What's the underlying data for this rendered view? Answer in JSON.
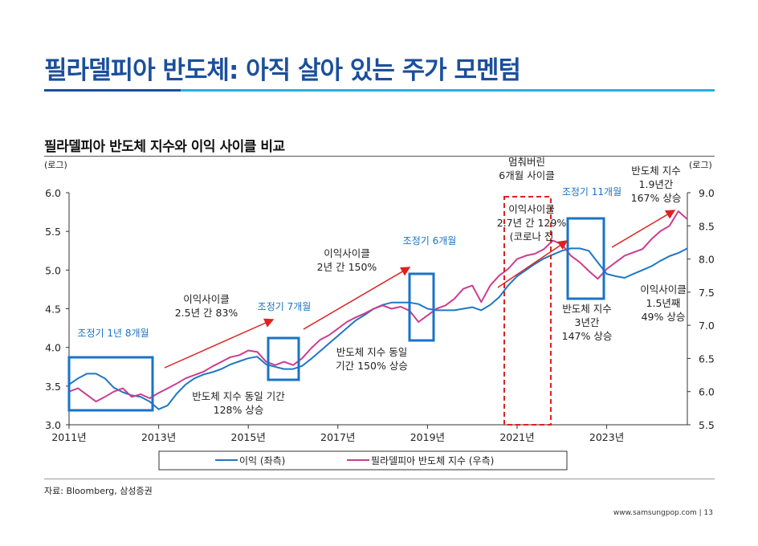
{
  "slide": {
    "title": "필라델피아 반도체: 아직 살아 있는 주가 모멘텀",
    "subtitle": "필라델피아 반도체 지수와 이익 사이클 비교",
    "source": "자료: Bloomberg, 삼성증권",
    "footer": "www.samsungpop.com | 13"
  },
  "chart_data": {
    "type": "line",
    "title": "필라델피아 반도체 지수와 이익 사이클 비교",
    "left_axis_label": "(로그)",
    "right_axis_label": "(로그)",
    "left_ylim": [
      3.0,
      6.0
    ],
    "right_ylim": [
      5.5,
      9.0
    ],
    "left_ticks": [
      "3.0",
      "3.5",
      "4.0",
      "4.5",
      "5.0",
      "5.5",
      "6.0"
    ],
    "right_ticks": [
      "5.5",
      "6.0",
      "6.5",
      "7.0",
      "7.5",
      "8.0",
      "8.5",
      "9.0"
    ],
    "xlim": [
      2011.0,
      2024.8
    ],
    "x_ticks": [
      "2011년",
      "2013년",
      "2015년",
      "2017년",
      "2019년",
      "2021년",
      "2023년"
    ],
    "legend": [
      "이익 (좌측)",
      "필라델피아 반도체 지수 (우측)"
    ],
    "series": [
      {
        "name": "이익 (좌측)",
        "axis": "left",
        "color": "#1f77c4",
        "points": [
          [
            2011.0,
            3.52
          ],
          [
            2011.2,
            3.6
          ],
          [
            2011.4,
            3.66
          ],
          [
            2011.6,
            3.66
          ],
          [
            2011.8,
            3.6
          ],
          [
            2012.0,
            3.48
          ],
          [
            2012.2,
            3.42
          ],
          [
            2012.4,
            3.38
          ],
          [
            2012.6,
            3.36
          ],
          [
            2012.8,
            3.3
          ],
          [
            2013.0,
            3.2
          ],
          [
            2013.2,
            3.25
          ],
          [
            2013.4,
            3.4
          ],
          [
            2013.6,
            3.52
          ],
          [
            2013.8,
            3.6
          ],
          [
            2014.0,
            3.65
          ],
          [
            2014.2,
            3.68
          ],
          [
            2014.4,
            3.72
          ],
          [
            2014.6,
            3.78
          ],
          [
            2014.8,
            3.82
          ],
          [
            2015.0,
            3.86
          ],
          [
            2015.2,
            3.88
          ],
          [
            2015.4,
            3.78
          ],
          [
            2015.6,
            3.75
          ],
          [
            2015.8,
            3.72
          ],
          [
            2016.0,
            3.72
          ],
          [
            2016.2,
            3.76
          ],
          [
            2016.4,
            3.85
          ],
          [
            2016.6,
            3.95
          ],
          [
            2016.8,
            4.05
          ],
          [
            2017.0,
            4.15
          ],
          [
            2017.2,
            4.25
          ],
          [
            2017.4,
            4.35
          ],
          [
            2017.6,
            4.42
          ],
          [
            2017.8,
            4.5
          ],
          [
            2018.0,
            4.55
          ],
          [
            2018.2,
            4.58
          ],
          [
            2018.4,
            4.58
          ],
          [
            2018.6,
            4.58
          ],
          [
            2018.8,
            4.56
          ],
          [
            2019.0,
            4.5
          ],
          [
            2019.2,
            4.48
          ],
          [
            2019.4,
            4.48
          ],
          [
            2019.6,
            4.48
          ],
          [
            2019.8,
            4.5
          ],
          [
            2020.0,
            4.52
          ],
          [
            2020.2,
            4.48
          ],
          [
            2020.4,
            4.55
          ],
          [
            2020.6,
            4.65
          ],
          [
            2020.8,
            4.8
          ],
          [
            2021.0,
            4.92
          ],
          [
            2021.2,
            5.0
          ],
          [
            2021.4,
            5.08
          ],
          [
            2021.6,
            5.15
          ],
          [
            2021.8,
            5.2
          ],
          [
            2022.0,
            5.25
          ],
          [
            2022.2,
            5.28
          ],
          [
            2022.4,
            5.28
          ],
          [
            2022.6,
            5.25
          ],
          [
            2022.8,
            5.1
          ],
          [
            2023.0,
            4.95
          ],
          [
            2023.2,
            4.92
          ],
          [
            2023.4,
            4.9
          ],
          [
            2023.6,
            4.95
          ],
          [
            2023.8,
            5.0
          ],
          [
            2024.0,
            5.05
          ],
          [
            2024.2,
            5.12
          ],
          [
            2024.4,
            5.18
          ],
          [
            2024.6,
            5.22
          ],
          [
            2024.8,
            5.28
          ]
        ]
      },
      {
        "name": "필라델피아 반도체 지수 (우측)",
        "axis": "right",
        "color": "#cc3d8f",
        "points": [
          [
            2011.0,
            6.0
          ],
          [
            2011.2,
            6.05
          ],
          [
            2011.4,
            5.95
          ],
          [
            2011.6,
            5.85
          ],
          [
            2011.8,
            5.92
          ],
          [
            2012.0,
            6.0
          ],
          [
            2012.2,
            6.05
          ],
          [
            2012.4,
            5.92
          ],
          [
            2012.6,
            5.96
          ],
          [
            2012.8,
            5.9
          ],
          [
            2013.0,
            5.98
          ],
          [
            2013.2,
            6.05
          ],
          [
            2013.4,
            6.12
          ],
          [
            2013.6,
            6.2
          ],
          [
            2013.8,
            6.25
          ],
          [
            2014.0,
            6.3
          ],
          [
            2014.2,
            6.38
          ],
          [
            2014.4,
            6.45
          ],
          [
            2014.6,
            6.52
          ],
          [
            2014.8,
            6.55
          ],
          [
            2015.0,
            6.62
          ],
          [
            2015.2,
            6.6
          ],
          [
            2015.4,
            6.45
          ],
          [
            2015.6,
            6.4
          ],
          [
            2015.8,
            6.45
          ],
          [
            2016.0,
            6.4
          ],
          [
            2016.2,
            6.5
          ],
          [
            2016.4,
            6.65
          ],
          [
            2016.6,
            6.78
          ],
          [
            2016.8,
            6.85
          ],
          [
            2017.0,
            6.95
          ],
          [
            2017.2,
            7.05
          ],
          [
            2017.4,
            7.12
          ],
          [
            2017.6,
            7.18
          ],
          [
            2017.8,
            7.25
          ],
          [
            2018.0,
            7.3
          ],
          [
            2018.2,
            7.25
          ],
          [
            2018.4,
            7.28
          ],
          [
            2018.6,
            7.22
          ],
          [
            2018.8,
            7.05
          ],
          [
            2019.0,
            7.15
          ],
          [
            2019.2,
            7.25
          ],
          [
            2019.4,
            7.3
          ],
          [
            2019.6,
            7.4
          ],
          [
            2019.8,
            7.55
          ],
          [
            2020.0,
            7.6
          ],
          [
            2020.2,
            7.35
          ],
          [
            2020.4,
            7.6
          ],
          [
            2020.6,
            7.75
          ],
          [
            2020.8,
            7.85
          ],
          [
            2021.0,
            8.0
          ],
          [
            2021.2,
            8.05
          ],
          [
            2021.4,
            8.08
          ],
          [
            2021.6,
            8.15
          ],
          [
            2021.8,
            8.28
          ],
          [
            2022.0,
            8.22
          ],
          [
            2022.2,
            8.05
          ],
          [
            2022.4,
            7.95
          ],
          [
            2022.6,
            7.82
          ],
          [
            2022.8,
            7.7
          ],
          [
            2023.0,
            7.85
          ],
          [
            2023.2,
            7.95
          ],
          [
            2023.4,
            8.05
          ],
          [
            2023.6,
            8.1
          ],
          [
            2023.8,
            8.15
          ],
          [
            2024.0,
            8.3
          ],
          [
            2024.2,
            8.42
          ],
          [
            2024.4,
            8.5
          ],
          [
            2024.6,
            8.72
          ],
          [
            2024.8,
            8.6
          ]
        ]
      }
    ],
    "annotations": {
      "box1_label": "조정기 1년 8개월",
      "box2_label": "조정기 7개월",
      "box3_label": "조정기 6개월",
      "box4_label": "조정기 11개월",
      "cycle1_line1": "이익사이클",
      "cycle1_line2": "2.5년 간 83%",
      "cycle2_line1": "이익사이클",
      "cycle2_line2": "2년 간 150%",
      "cycle3_line1": "이익사이클",
      "cycle3_line2": "2.7년 간 129%",
      "cycle3_line3": "(코로나 전",
      "cycle4_line1": "이익사이클",
      "cycle4_line2": "1.5년째",
      "cycle4_line3": "49% 상승",
      "idx1_line1": "반도체 지수 동일 기간",
      "idx1_line2": "128% 상승",
      "idx2_line1": "반도체 지수 동일",
      "idx2_line2": "기간 150% 상승",
      "idx3_line1": "반도체 지수",
      "idx3_line2": "3년간",
      "idx3_line3": "147% 상승",
      "idx4_line1": "반도체 지수",
      "idx4_line2": "1.9년간",
      "idx4_line3": "167% 상승",
      "stalled_line1": "멈춰버린",
      "stalled_line2": "6개월 사이클"
    }
  }
}
